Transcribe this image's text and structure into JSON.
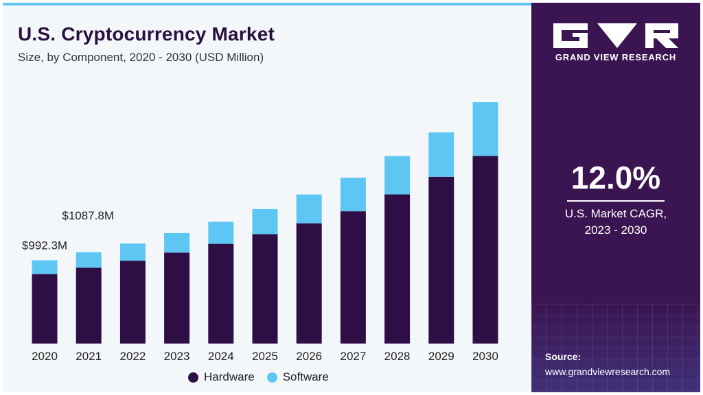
{
  "header": {
    "title": "U.S. Cryptocurrency Market",
    "subtitle": "Size, by Component, 2020 - 2030 (USD Million)"
  },
  "brand": {
    "name": "GRAND VIEW RESEARCH"
  },
  "highlight": {
    "cagr_value": "12.0%",
    "cagr_label_line1": "U.S. Market CAGR,",
    "cagr_label_line2": "2023 - 2030"
  },
  "source": {
    "label": "Source:",
    "url": "www.grandviewresearch.com"
  },
  "colors": {
    "hardware": "#2e0f45",
    "software": "#5ec6f2",
    "panel": "#3b1551"
  },
  "chart_data": {
    "type": "bar",
    "stacked": true,
    "title": "U.S. Cryptocurrency Market",
    "subtitle": "Size, by Component, 2020 - 2030 (USD Million)",
    "categories": [
      "2020",
      "2021",
      "2022",
      "2023",
      "2024",
      "2025",
      "2026",
      "2027",
      "2028",
      "2029",
      "2030"
    ],
    "series": [
      {
        "name": "Hardware",
        "values": [
          827,
          904,
          986,
          1083,
          1187,
          1303,
          1432,
          1575,
          1776,
          1986,
          2234
        ]
      },
      {
        "name": "Software",
        "values": [
          165.3,
          183.8,
          205,
          232,
          262,
          298,
          343,
          399,
          456,
          528,
          640
        ]
      }
    ],
    "data_labels": [
      {
        "category": "2020",
        "text": "$992.3M"
      },
      {
        "category": "2021",
        "text": "$1087.8M"
      }
    ],
    "ylim": [
      0,
      2874
    ],
    "legend_position": "bottom-center",
    "grid": false,
    "xlabel": "",
    "ylabel": ""
  }
}
